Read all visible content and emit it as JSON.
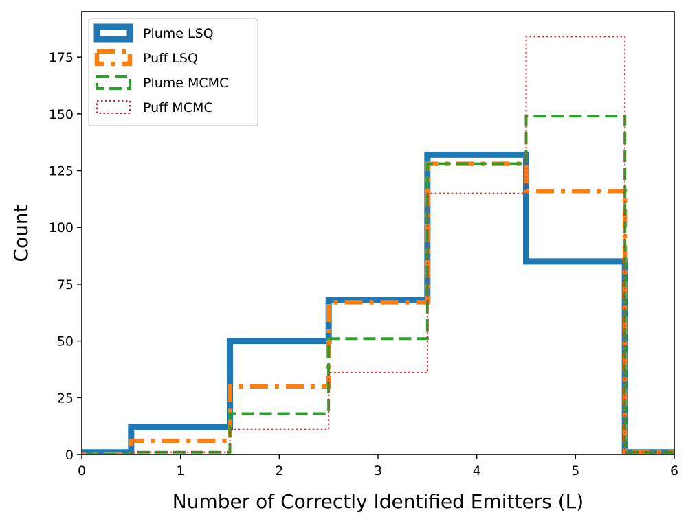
{
  "chart_data": {
    "type": "histogram-step",
    "xlabel": "Number of Correctly Identified Emitters (L)",
    "ylabel": "Count",
    "xlim": [
      0,
      6
    ],
    "ylim": [
      0,
      195
    ],
    "x_ticks": [
      "0",
      "1",
      "2",
      "3",
      "4",
      "5",
      "6"
    ],
    "y_ticks": [
      "0",
      "25",
      "50",
      "75",
      "100",
      "125",
      "150",
      "175"
    ],
    "bin_edges": [
      -0.5,
      0.5,
      1.5,
      2.5,
      3.5,
      4.5,
      5.5,
      6.5
    ],
    "grid": false,
    "legend_position": "top-left",
    "series": [
      {
        "name": "Plume LSQ",
        "values": [
          1,
          12,
          50,
          68,
          132,
          85,
          1
        ],
        "color": "#1f77b4",
        "line_style": "solid"
      },
      {
        "name": "Puff LSQ",
        "values": [
          0,
          6,
          30,
          67,
          128,
          116,
          1
        ],
        "color": "#ff7f0e",
        "line_style": "dashdot"
      },
      {
        "name": "Plume MCMC",
        "values": [
          0,
          1,
          18,
          51,
          128,
          149,
          1
        ],
        "color": "#2ca02c",
        "line_style": "dashed"
      },
      {
        "name": "Puff MCMC",
        "values": [
          0,
          1,
          11,
          36,
          115,
          184,
          1
        ],
        "color": "#d62728",
        "line_style": "dotted"
      }
    ]
  }
}
